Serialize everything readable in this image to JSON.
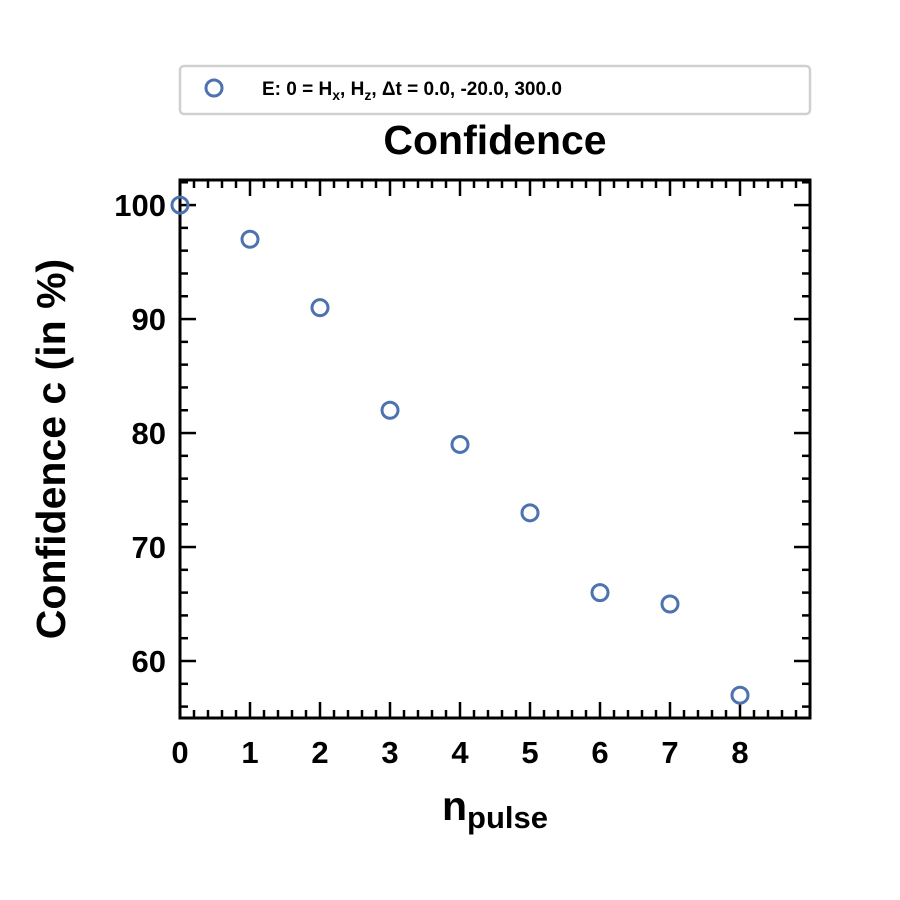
{
  "chart_data": {
    "type": "scatter",
    "title": "Confidence",
    "xlabel": {
      "main": "n",
      "sub": "pulse"
    },
    "ylabel": "Confidence c (in %)",
    "xlim": [
      0,
      9
    ],
    "ylim": [
      55,
      102.2
    ],
    "x_ticks": [
      "0",
      "1",
      "2",
      "3",
      "4",
      "5",
      "6",
      "7",
      "8"
    ],
    "y_ticks": [
      "60",
      "70",
      "80",
      "90",
      "100"
    ],
    "series": [
      {
        "name": "E: 0 = Hx, Hz, Δt =  0.0, -20.0, 300.0",
        "x": [
          0,
          1,
          2,
          3,
          4,
          5,
          6,
          7,
          8
        ],
        "y": [
          100,
          97,
          91,
          82,
          79,
          73,
          66,
          65,
          57
        ]
      }
    ],
    "legend": {
      "placement": "top",
      "parts": {
        "prefix": "E: 0 = H",
        "sub1": "x",
        "mid": ", H",
        "sub2": "z",
        "suffix": ", Δt =  0.0, -20.0, 300.0"
      }
    },
    "grid": false,
    "marker_color": "#4c72b0"
  }
}
